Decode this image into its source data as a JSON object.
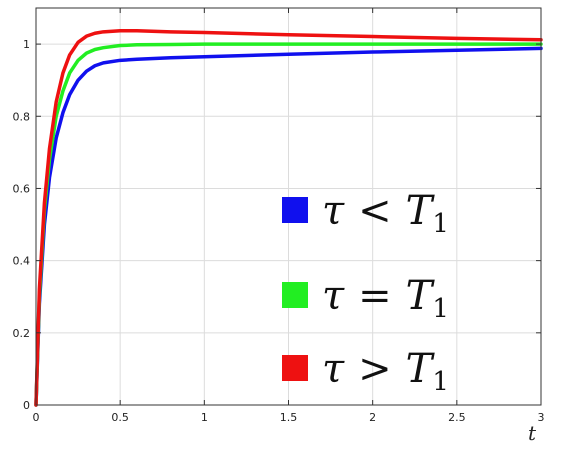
{
  "chart_data": {
    "type": "line",
    "title": "",
    "xlabel": "t",
    "ylabel": "",
    "xlim": [
      0,
      3
    ],
    "ylim": [
      0,
      1.1
    ],
    "grid": true,
    "legend_position": "bottom-right",
    "x_ticks": [
      0,
      0.5,
      1,
      1.5,
      2,
      2.5,
      3
    ],
    "x_tick_labels": [
      "0",
      "0.5",
      "1",
      "1.5",
      "2",
      "2.5",
      "3"
    ],
    "y_ticks": [
      0,
      0.2,
      0.4,
      0.6,
      0.8,
      1
    ],
    "y_tick_labels": [
      "0",
      "0.2",
      "0.4",
      "0.6",
      "0.8",
      "1"
    ],
    "series": [
      {
        "symbol": "τ",
        "relation": "<",
        "variable": "T",
        "subscript": "1",
        "color": "#1010ee",
        "x": [
          0,
          0.02,
          0.05,
          0.08,
          0.12,
          0.16,
          0.2,
          0.25,
          0.3,
          0.35,
          0.4,
          0.5,
          0.6,
          0.8,
          1.0,
          1.5,
          2.0,
          2.5,
          3.0
        ],
        "y": [
          0,
          0.28,
          0.5,
          0.63,
          0.74,
          0.81,
          0.86,
          0.9,
          0.925,
          0.94,
          0.948,
          0.955,
          0.958,
          0.962,
          0.965,
          0.972,
          0.978,
          0.983,
          0.988
        ]
      },
      {
        "symbol": "τ",
        "relation": "=",
        "variable": "T",
        "subscript": "1",
        "color": "#22ee22",
        "x": [
          0,
          0.02,
          0.05,
          0.08,
          0.12,
          0.16,
          0.2,
          0.25,
          0.3,
          0.35,
          0.4,
          0.5,
          0.6,
          0.8,
          1.0,
          1.5,
          2.0,
          2.5,
          3.0
        ],
        "y": [
          0,
          0.3,
          0.54,
          0.68,
          0.8,
          0.87,
          0.92,
          0.955,
          0.975,
          0.985,
          0.99,
          0.996,
          0.998,
          0.999,
          1.0,
          1.0,
          1.0,
          1.0,
          1.0
        ]
      },
      {
        "symbol": "τ",
        "relation": ">",
        "variable": "T",
        "subscript": "1",
        "color": "#ee1111",
        "x": [
          0,
          0.02,
          0.05,
          0.08,
          0.12,
          0.16,
          0.2,
          0.25,
          0.3,
          0.35,
          0.4,
          0.5,
          0.6,
          0.8,
          1.0,
          1.5,
          2.0,
          2.5,
          3.0
        ],
        "y": [
          0,
          0.32,
          0.56,
          0.71,
          0.84,
          0.92,
          0.97,
          1.005,
          1.022,
          1.03,
          1.034,
          1.037,
          1.037,
          1.034,
          1.032,
          1.026,
          1.021,
          1.016,
          1.012
        ]
      }
    ]
  }
}
